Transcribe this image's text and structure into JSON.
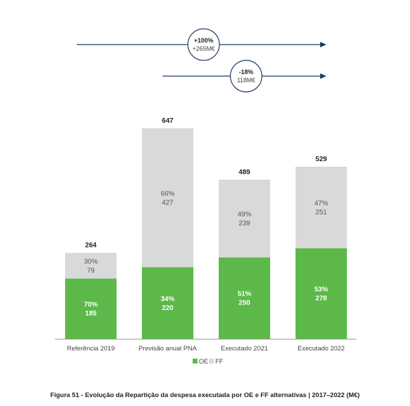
{
  "chart_data": {
    "type": "bar",
    "stacked": true,
    "categories": [
      "Referência 2019",
      "Previsão anual PNA",
      "Executado 2021",
      "Executado 2022"
    ],
    "totals": [
      "264",
      "647",
      "489",
      "529"
    ],
    "series": [
      {
        "name": "OE",
        "color": "#5cb949",
        "values": [
          185,
          220,
          250,
          278
        ],
        "pct_labels": [
          "70%",
          "34%",
          "51%",
          "53%"
        ],
        "value_labels": [
          "185",
          "220",
          "250",
          "278"
        ]
      },
      {
        "name": "FF",
        "color": "#d9d9d9",
        "values": [
          79,
          427,
          239,
          251
        ],
        "pct_labels": [
          "30%",
          "66%",
          "49%",
          "47%"
        ],
        "value_labels": [
          "79",
          "427",
          "239",
          "251"
        ]
      }
    ],
    "ylim": [
      0,
      647
    ],
    "grid": false,
    "legend_position": "bottom",
    "annotations": [
      {
        "from": "Referência 2019",
        "to": "Executado 2022",
        "line1": "+100%",
        "line2": "+265M€"
      },
      {
        "from": "Previsão anual PNA",
        "to": "Executado 2022",
        "line1": "-18%",
        "line2": "118M€"
      }
    ]
  },
  "caption": "Figura 51 - Evolução da Repartição da despesa executada por OE e FF alternativas | 2017–2022 (M€)"
}
